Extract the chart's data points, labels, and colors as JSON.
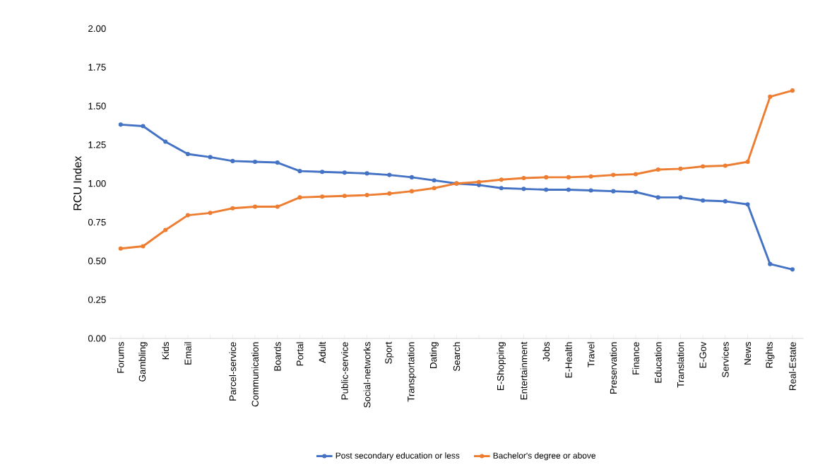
{
  "chart_data": {
    "type": "line",
    "ylabel": "RCU Index",
    "categories": [
      "Forums",
      "Gambling",
      "Kids",
      "Email",
      null,
      "Parcel-service",
      "Communication",
      "Boards",
      "Portal",
      "Adult",
      "Public-service",
      "Social-networks",
      "Sport",
      "Transportation",
      "Dating",
      "Search",
      null,
      "E-Shopping",
      "Entertainment",
      "Jobs",
      "E-Health",
      "Travel",
      "Preservation",
      "Finance",
      "Education",
      "Translation",
      "E-Gov",
      "Services",
      "News",
      "Rights",
      "Real-Estate"
    ],
    "series": [
      {
        "name": "Post secondary education or less",
        "color": "#4472c4",
        "values": [
          1.38,
          1.37,
          1.27,
          1.19,
          1.17,
          1.145,
          1.14,
          1.135,
          1.08,
          1.075,
          1.07,
          1.065,
          1.055,
          1.04,
          1.02,
          1.0,
          0.99,
          0.97,
          0.965,
          0.96,
          0.96,
          0.955,
          0.95,
          0.945,
          0.91,
          0.91,
          0.89,
          0.885,
          0.865,
          0.48,
          0.445
        ]
      },
      {
        "name": "Bachelor's degree or above",
        "color": "#ed7d31",
        "values": [
          0.58,
          0.595,
          0.7,
          0.795,
          0.81,
          0.84,
          0.85,
          0.85,
          0.91,
          0.915,
          0.92,
          0.925,
          0.935,
          0.95,
          0.97,
          1.0,
          1.01,
          1.025,
          1.035,
          1.04,
          1.04,
          1.045,
          1.055,
          1.06,
          1.09,
          1.095,
          1.11,
          1.115,
          1.14,
          1.56,
          1.6
        ]
      }
    ],
    "ylim": [
      0,
      2
    ],
    "yticks": [
      {
        "value": 0,
        "label": "0.00"
      },
      {
        "value": 0.25,
        "label": "0.25"
      },
      {
        "value": 0.5,
        "label": "0.50"
      },
      {
        "value": 0.75,
        "label": "0.75"
      },
      {
        "value": 1,
        "label": "1.00"
      },
      {
        "value": 1.25,
        "label": "1.25"
      },
      {
        "value": 1.5,
        "label": "1.50"
      },
      {
        "value": 1.75,
        "label": "1.75"
      },
      {
        "value": 2,
        "label": "2.00"
      }
    ],
    "grid": false,
    "legend": "bottom",
    "marker": "circle",
    "line_style": "solid"
  }
}
